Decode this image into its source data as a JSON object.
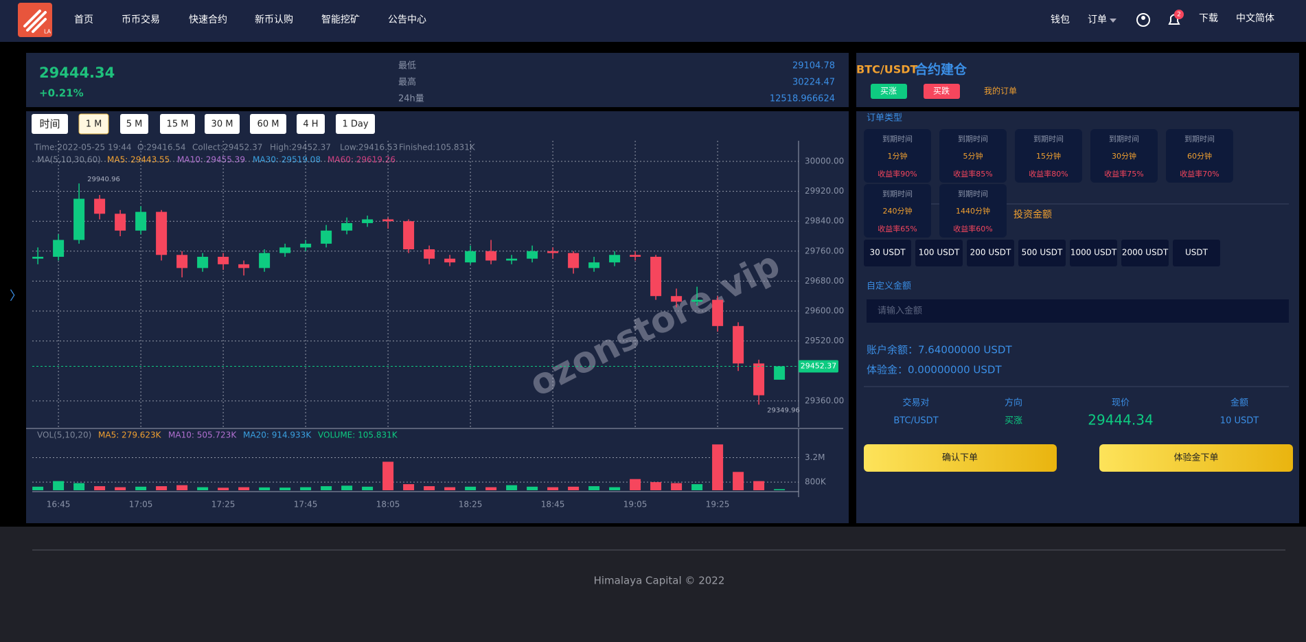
{
  "header": {
    "logo": "LA",
    "nav": [
      "首页",
      "币币交易",
      "快速合约",
      "新币认购",
      "智能挖矿",
      "公告中心"
    ],
    "wallet": "钱包",
    "orders": "订单",
    "badge": 2,
    "download": "下载",
    "language": "中文简体"
  },
  "side_arrow": "〉",
  "stats": {
    "price": "29444.34",
    "change": "+0.21%",
    "labels": [
      "最低",
      "最高",
      "24h量"
    ],
    "values": [
      "29104.78",
      "30224.47",
      "12518.966624"
    ]
  },
  "chart_data": {
    "type": "candlestick",
    "intervals": [
      "时间",
      "1 M",
      "5 M",
      "15 M",
      "30 M",
      "60 M",
      "4 H",
      "1 Day"
    ],
    "info": [
      "Time:2022-05-25 19:44",
      "O:29416.54",
      "Collect:29452.37",
      "High:29452.37",
      "Low:29416.53",
      "Finished:105.831K"
    ],
    "ma_info": [
      {
        "text": "MA(5,10,30,60)",
        "color": "#7d8699"
      },
      {
        "text": "MA5: 29443.55",
        "color": "#f0a030"
      },
      {
        "text": "MA10: 29455.39",
        "color": "#b070d0"
      },
      {
        "text": "MA30: 29519.08",
        "color": "#3aa0e0"
      },
      {
        "text": "MA60: 29619.26",
        "color": "#d04080"
      }
    ],
    "vol_info": [
      {
        "text": "VOL(5,10,20)",
        "color": "#7d8699"
      },
      {
        "text": "MA5: 279.623K",
        "color": "#f0a030"
      },
      {
        "text": "MA10: 505.723K",
        "color": "#b070d0"
      },
      {
        "text": "MA20: 914.933K",
        "color": "#3aa0e0"
      },
      {
        "text": "VOLUME: 105.831K",
        "color": "#0ecb81"
      }
    ],
    "open": [
      29740,
      29745,
      29790,
      29900,
      29860,
      29815,
      29865,
      29750,
      29715,
      29745,
      29725,
      29715,
      29755,
      29770,
      29780,
      29815,
      29835,
      29845,
      29840,
      29765,
      29740,
      29730,
      29760,
      29735,
      29740,
      29760,
      29755,
      29715,
      29730,
      29750,
      29745,
      29640,
      29625,
      29630,
      29560,
      29460,
      29416.54
    ],
    "high": [
      29770,
      29805,
      29940.96,
      29910,
      29870,
      29880,
      29870,
      29760,
      29755,
      29755,
      29735,
      29765,
      29780,
      29790,
      29830,
      29850,
      29855,
      29850,
      29845,
      29775,
      29750,
      29775,
      29790,
      29750,
      29775,
      29770,
      29760,
      29745,
      29760,
      29760,
      29750,
      29660,
      29665,
      29640,
      29570,
      29470,
      29452.37
    ],
    "low": [
      29725,
      29735,
      29780,
      29845,
      29800,
      29805,
      29735,
      29690,
      29705,
      29710,
      29695,
      29705,
      29745,
      29760,
      29770,
      29805,
      29825,
      29820,
      29755,
      29725,
      29720,
      29725,
      29725,
      29725,
      29730,
      29740,
      29700,
      29705,
      29720,
      29735,
      29630,
      29610,
      29615,
      29545,
      29440,
      29349.96,
      29416.53
    ],
    "close": [
      29745,
      29790,
      29900,
      29860,
      29815,
      29865,
      29750,
      29715,
      29745,
      29725,
      29715,
      29755,
      29770,
      29780,
      29815,
      29835,
      29845,
      29840,
      29765,
      29740,
      29730,
      29760,
      29735,
      29740,
      29760,
      29755,
      29715,
      29730,
      29750,
      29745,
      29640,
      29625,
      29630,
      29560,
      29460,
      29375,
      29452.37
    ],
    "volume": [
      350000,
      900000,
      700000,
      400000,
      300000,
      350000,
      400000,
      500000,
      300000,
      250000,
      300000,
      280000,
      260000,
      300000,
      400000,
      450000,
      350000,
      2800000,
      600000,
      400000,
      300000,
      350000,
      300000,
      500000,
      350000,
      300000,
      350000,
      400000,
      300000,
      1100000,
      800000,
      700000,
      600000,
      4500000,
      1800000,
      900000,
      105831
    ],
    "up_color": "#0ecb81",
    "down_color": "#f6465d",
    "ylim": [
      29290,
      30055
    ],
    "yticks": [
      {
        "value": 30000,
        "label": "30000.00"
      },
      {
        "value": 29920,
        "label": "29920.00"
      },
      {
        "value": 29840,
        "label": "29840.00"
      },
      {
        "value": 29760,
        "label": "29760.00"
      },
      {
        "value": 29680,
        "label": "29680.00"
      },
      {
        "value": 29600,
        "label": "29600.00"
      },
      {
        "value": 29520,
        "label": "29520.00"
      },
      {
        "value": 29360,
        "label": "29360.00"
      }
    ],
    "vlim": [
      0,
      6000000
    ],
    "vticks": [
      {
        "value": 3200000,
        "label": "3.2M"
      },
      {
        "value": 800000,
        "label": "800K"
      }
    ],
    "xlim": [
      -0.27,
      36.93
    ],
    "xticks": [
      {
        "value": 1,
        "label": "16:45"
      },
      {
        "value": 5,
        "label": "17:05"
      },
      {
        "value": 9,
        "label": "17:25"
      },
      {
        "value": 13,
        "label": "17:45"
      },
      {
        "value": 17,
        "label": "18:05"
      },
      {
        "value": 21,
        "label": "18:25"
      },
      {
        "value": 25,
        "label": "18:45"
      },
      {
        "value": 29,
        "label": "19:05"
      },
      {
        "value": 33,
        "label": "19:25"
      }
    ],
    "last_price": 29452.37,
    "grid": true,
    "watermark": "ozonstore.vip"
  },
  "trade": {
    "pair": "BTC/USDT",
    "title": "合约建仓",
    "buy_up": "买涨",
    "buy_down": "买跌",
    "my_orders": "我的订单",
    "order_type": "订单类型",
    "cards": [
      {
        "label": "到期时间",
        "time": "1分钟",
        "rate": "收益率90%"
      },
      {
        "label": "到期时间",
        "time": "5分钟",
        "rate": "收益率85%"
      },
      {
        "label": "到期时间",
        "time": "15分钟",
        "rate": "收益率80%"
      },
      {
        "label": "到期时间",
        "time": "30分钟",
        "rate": "收益率75%"
      },
      {
        "label": "到期时间",
        "time": "60分钟",
        "rate": "收益率70%"
      },
      {
        "label": "到期时间",
        "time": "240分钟",
        "rate": "收益率65%"
      },
      {
        "label": "到期时间",
        "time": "1440分钟",
        "rate": "收益率60%"
      }
    ],
    "invest_label": "投资金额",
    "amounts": [
      "30 USDT",
      "100 USDT",
      "200 USDT",
      "500 USDT",
      "1000 USDT",
      "2000 USDT",
      "USDT"
    ],
    "custom_label": "自定义金额",
    "placeholder": "请输入金额",
    "balance": "账户余额：7.64000000 USDT",
    "trial": "体验金：0.00000000 USDT",
    "table_headers": [
      "交易对",
      "方向",
      "现价",
      "金额"
    ],
    "table_values": [
      "BTC/USDT",
      "买涨",
      "29444.34",
      "10 USDT"
    ],
    "confirm": "确认下单",
    "trial_order": "体验金下单"
  },
  "footer": "Himalaya Capital © 2022"
}
